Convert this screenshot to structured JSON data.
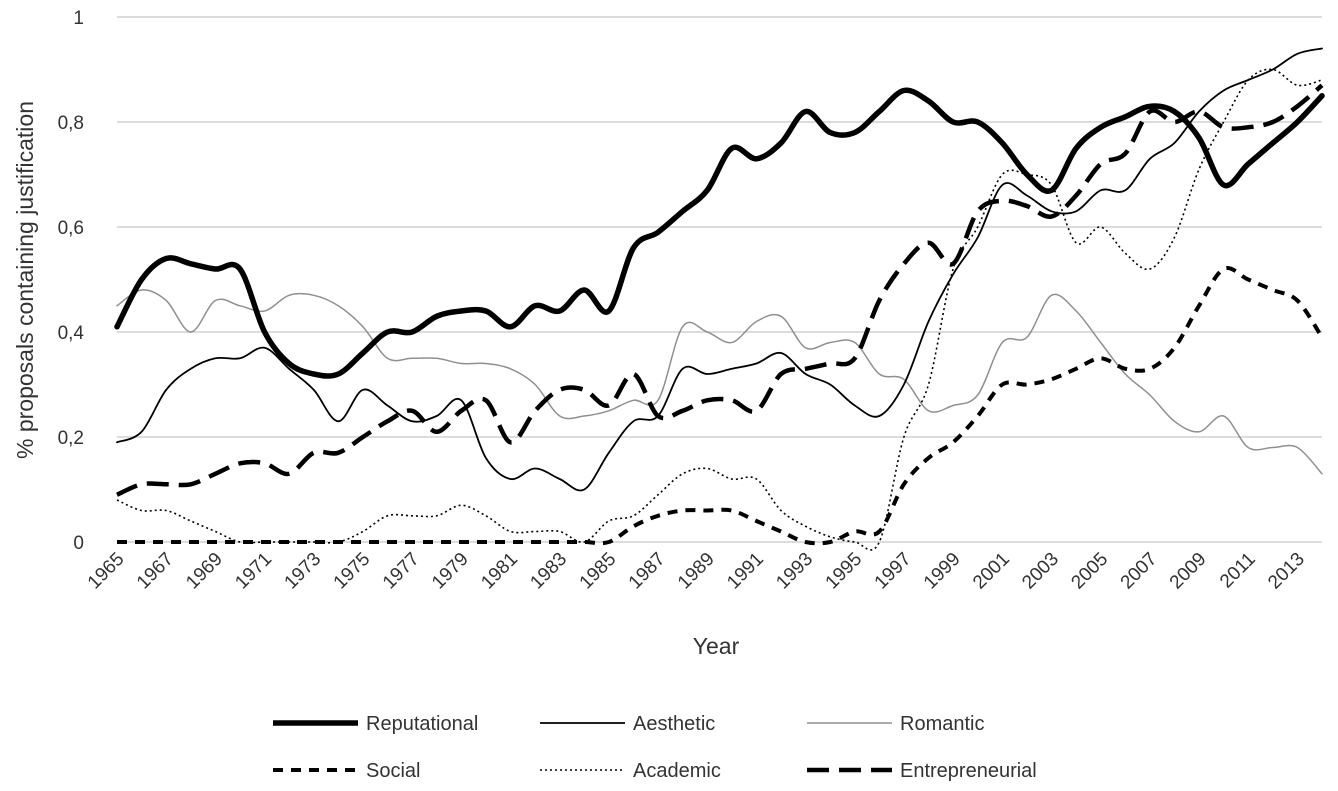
{
  "chart_data": {
    "type": "line",
    "title": "",
    "xlabel": "Year",
    "ylabel": "% proposals containing justification",
    "x": [
      1965,
      1966,
      1967,
      1968,
      1969,
      1970,
      1971,
      1972,
      1973,
      1974,
      1975,
      1976,
      1977,
      1978,
      1979,
      1980,
      1981,
      1982,
      1983,
      1984,
      1985,
      1986,
      1987,
      1988,
      1989,
      1990,
      1991,
      1992,
      1993,
      1994,
      1995,
      1996,
      1997,
      1998,
      1999,
      2000,
      2001,
      2002,
      2003,
      2004,
      2005,
      2006,
      2007,
      2008,
      2009,
      2010,
      2011,
      2012,
      2013,
      2014
    ],
    "xlim": [
      1965,
      2014
    ],
    "ylim": [
      0,
      1
    ],
    "x_tick_labels": [
      "1965",
      "1967",
      "1969",
      "1971",
      "1973",
      "1975",
      "1977",
      "1979",
      "1981",
      "1983",
      "1985",
      "1987",
      "1989",
      "1991",
      "1993",
      "1995",
      "1997",
      "1999",
      "2001",
      "2003",
      "2005",
      "2007",
      "2009",
      "2011",
      "2013"
    ],
    "y_tick_labels": [
      "0",
      "0,2",
      "0,4",
      "0,6",
      "0,8",
      "1"
    ],
    "y_ticks": [
      0,
      0.2,
      0.4,
      0.6,
      0.8,
      1
    ],
    "grid": true,
    "legend_position": "bottom",
    "series": [
      {
        "name": "Reputational",
        "style": "thick-solid",
        "color": "#000000",
        "values": [
          0.41,
          0.5,
          0.54,
          0.53,
          0.52,
          0.52,
          0.4,
          0.34,
          0.32,
          0.32,
          0.36,
          0.4,
          0.4,
          0.43,
          0.44,
          0.44,
          0.41,
          0.45,
          0.44,
          0.48,
          0.44,
          0.56,
          0.59,
          0.63,
          0.67,
          0.75,
          0.73,
          0.76,
          0.82,
          0.78,
          0.78,
          0.82,
          0.86,
          0.84,
          0.8,
          0.8,
          0.76,
          0.7,
          0.67,
          0.75,
          0.79,
          0.81,
          0.83,
          0.82,
          0.77,
          0.68,
          0.72,
          0.76,
          0.8,
          0.85
        ]
      },
      {
        "name": "Aesthetic",
        "style": "solid",
        "color": "#000000",
        "values": [
          0.19,
          0.21,
          0.29,
          0.33,
          0.35,
          0.35,
          0.37,
          0.33,
          0.29,
          0.23,
          0.29,
          0.26,
          0.23,
          0.24,
          0.27,
          0.16,
          0.12,
          0.14,
          0.12,
          0.1,
          0.17,
          0.23,
          0.24,
          0.33,
          0.32,
          0.33,
          0.34,
          0.36,
          0.32,
          0.3,
          0.26,
          0.24,
          0.3,
          0.42,
          0.51,
          0.58,
          0.68,
          0.66,
          0.63,
          0.63,
          0.67,
          0.67,
          0.73,
          0.76,
          0.82,
          0.86,
          0.88,
          0.9,
          0.93,
          0.94
        ]
      },
      {
        "name": "Romantic",
        "style": "thin-gray",
        "color": "#8f8f8f",
        "values": [
          0.45,
          0.48,
          0.46,
          0.4,
          0.46,
          0.45,
          0.44,
          0.47,
          0.47,
          0.45,
          0.41,
          0.35,
          0.35,
          0.35,
          0.34,
          0.34,
          0.33,
          0.3,
          0.24,
          0.24,
          0.25,
          0.27,
          0.27,
          0.41,
          0.4,
          0.38,
          0.42,
          0.43,
          0.37,
          0.38,
          0.38,
          0.32,
          0.31,
          0.25,
          0.26,
          0.28,
          0.38,
          0.39,
          0.47,
          0.44,
          0.38,
          0.32,
          0.28,
          0.23,
          0.21,
          0.24,
          0.18,
          0.18,
          0.18,
          0.13
        ]
      },
      {
        "name": "Social",
        "style": "dashed",
        "color": "#000000",
        "values": [
          0,
          0,
          0,
          0,
          0,
          0,
          0,
          0,
          0,
          0,
          0,
          0,
          0,
          0,
          0,
          0,
          0,
          0,
          0,
          0,
          0,
          0.03,
          0.05,
          0.06,
          0.06,
          0.06,
          0.04,
          0.02,
          0,
          0,
          0.02,
          0.02,
          0.11,
          0.16,
          0.19,
          0.24,
          0.3,
          0.3,
          0.31,
          0.33,
          0.35,
          0.33,
          0.33,
          0.37,
          0.45,
          0.52,
          0.5,
          0.48,
          0.46,
          0.39
        ]
      },
      {
        "name": "Academic",
        "style": "dotted",
        "color": "#000000",
        "values": [
          0.08,
          0.06,
          0.06,
          0.04,
          0.02,
          0,
          0,
          0,
          0,
          0,
          0.02,
          0.05,
          0.05,
          0.05,
          0.07,
          0.05,
          0.02,
          0.02,
          0.02,
          0,
          0.04,
          0.05,
          0.09,
          0.13,
          0.14,
          0.12,
          0.12,
          0.06,
          0.03,
          0.01,
          0,
          0,
          0.2,
          0.3,
          0.52,
          0.6,
          0.7,
          0.7,
          0.68,
          0.57,
          0.6,
          0.55,
          0.52,
          0.58,
          0.71,
          0.8,
          0.88,
          0.9,
          0.87,
          0.88
        ]
      },
      {
        "name": "Entrepreneurial",
        "style": "long-dash",
        "color": "#000000",
        "values": [
          0.09,
          0.11,
          0.11,
          0.11,
          0.13,
          0.15,
          0.15,
          0.13,
          0.17,
          0.17,
          0.2,
          0.23,
          0.25,
          0.21,
          0.25,
          0.27,
          0.19,
          0.25,
          0.29,
          0.29,
          0.26,
          0.32,
          0.24,
          0.25,
          0.27,
          0.27,
          0.25,
          0.32,
          0.33,
          0.34,
          0.35,
          0.46,
          0.53,
          0.57,
          0.53,
          0.63,
          0.65,
          0.64,
          0.62,
          0.66,
          0.72,
          0.74,
          0.82,
          0.8,
          0.82,
          0.79,
          0.79,
          0.8,
          0.83,
          0.87
        ]
      }
    ]
  }
}
